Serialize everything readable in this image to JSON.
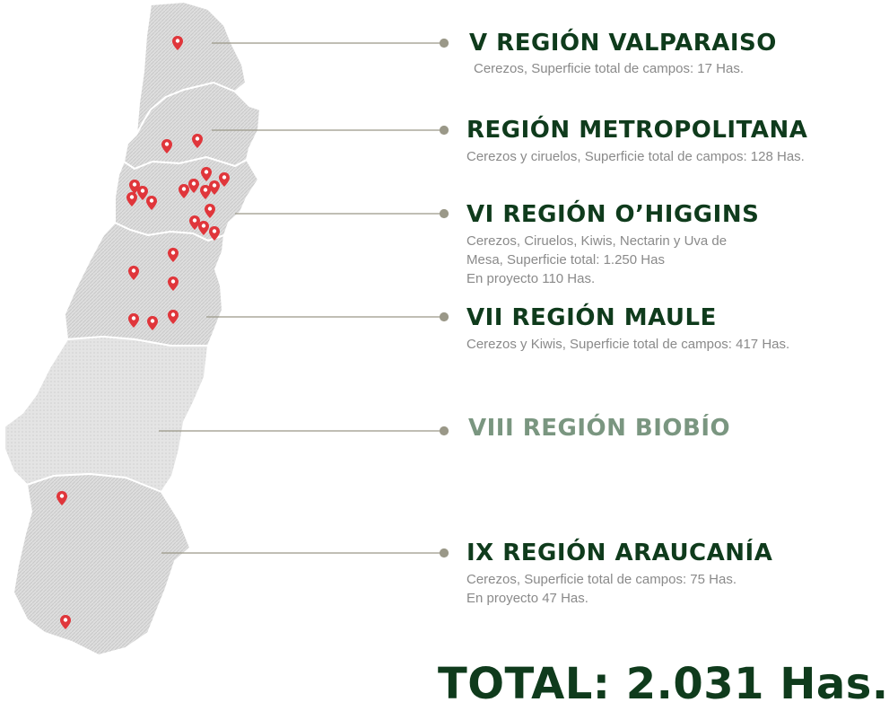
{
  "colors": {
    "title_dark": "#0f3b1c",
    "title_muted": "#7a9680",
    "desc_text": "#8a8a8a",
    "region_fill": "#dcdcdc",
    "pin": "#e0363b",
    "leader_line": "#9a9888"
  },
  "regions": [
    {
      "id": "valparaiso",
      "title": "V REGIÓN VALPARAISO",
      "desc": "Cerezos, Superficie total de campos: 17 Has.",
      "has_pins": true
    },
    {
      "id": "metropolitana",
      "title": "REGIÓN METROPOLITANA",
      "desc": "Cerezos y ciruelos, Superficie total de campos: 128 Has.",
      "has_pins": true
    },
    {
      "id": "ohiggins",
      "title": "VI REGIÓN O’HIGGINS",
      "desc": "Cerezos, Ciruelos, Kiwis, Nectarin y Uva de Mesa, Superficie total: 1.250 Has En proyecto 110 Has.",
      "desc_lines": [
        "Cerezos, Ciruelos, Kiwis, Nectarin y Uva de",
        "Mesa, Superficie total: 1.250 Has",
        "En proyecto 110 Has."
      ],
      "has_pins": true
    },
    {
      "id": "maule",
      "title": "VII REGIÓN MAULE",
      "desc": "Cerezos y Kiwis, Superficie total de campos: 417 Has.",
      "has_pins": true
    },
    {
      "id": "biobio",
      "title": "VIII REGIÓN BIOBÍO",
      "desc": "",
      "has_pins": false
    },
    {
      "id": "araucania",
      "title": "IX REGIÓN ARAUCANÍA",
      "desc": "Cerezos, Superficie total de campos: 75 Has. En proyecto 47 Has.",
      "desc_lines": [
        "Cerezos, Superficie total de campos: 75 Has.",
        "En proyecto 47 Has."
      ],
      "has_pins": true
    }
  ],
  "total": "TOTAL: 2.031 Has.",
  "icons": {
    "pin": "map-pin-icon",
    "bullet": "leader-dot-icon"
  }
}
